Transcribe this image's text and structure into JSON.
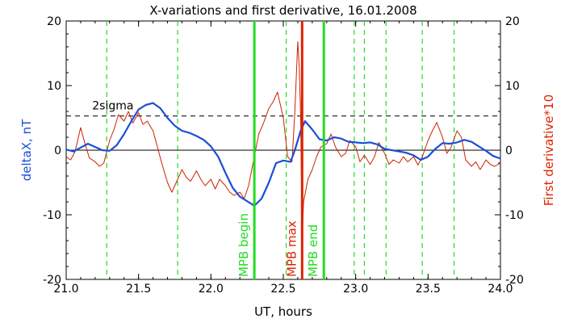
{
  "chart_data": {
    "type": "line",
    "title": "X-variations and first derivative, 16.01.2008",
    "xlabel": "UT, hours",
    "ylabel_left": "deltaX, nT",
    "ylabel_right": "First derivative*10",
    "xlim": [
      21.0,
      24.0
    ],
    "ylim": [
      -20,
      20
    ],
    "xticks": [
      "21.0",
      "21.5",
      "22.0",
      "22.5",
      "23.0",
      "23.5",
      "24.0"
    ],
    "yticks_left": [
      "-20",
      "-10",
      "0",
      "10",
      "20"
    ],
    "yticks_right": [
      "-20",
      "-10",
      "0",
      "10",
      "20"
    ],
    "zero_line": 0,
    "sigma_line": {
      "label": "2sigma",
      "value": 5.3,
      "color": "#000000"
    },
    "colors": {
      "deltaX": "#1a4fd6",
      "derivative": "#cc2200",
      "green": "#22dd22",
      "red_marker": "#dd2200"
    },
    "series": [
      {
        "name": "deltaX",
        "color": "#1a4fd6",
        "points": [
          [
            21.0,
            0.1
          ],
          [
            21.05,
            -0.2
          ],
          [
            21.1,
            0.4
          ],
          [
            21.15,
            1.0
          ],
          [
            21.2,
            0.5
          ],
          [
            21.25,
            0.0
          ],
          [
            21.3,
            -0.1
          ],
          [
            21.35,
            0.8
          ],
          [
            21.4,
            2.5
          ],
          [
            21.45,
            4.5
          ],
          [
            21.5,
            6.3
          ],
          [
            21.55,
            7.0
          ],
          [
            21.6,
            7.3
          ],
          [
            21.65,
            6.5
          ],
          [
            21.7,
            5.0
          ],
          [
            21.75,
            3.8
          ],
          [
            21.8,
            3.0
          ],
          [
            21.85,
            2.7
          ],
          [
            21.9,
            2.2
          ],
          [
            21.95,
            1.6
          ],
          [
            22.0,
            0.6
          ],
          [
            22.05,
            -1.0
          ],
          [
            22.1,
            -3.5
          ],
          [
            22.15,
            -5.8
          ],
          [
            22.2,
            -7.2
          ],
          [
            22.25,
            -7.9
          ],
          [
            22.28,
            -8.3
          ],
          [
            22.3,
            -8.6
          ],
          [
            22.35,
            -7.5
          ],
          [
            22.4,
            -5.0
          ],
          [
            22.45,
            -2.0
          ],
          [
            22.5,
            -1.6
          ],
          [
            22.55,
            -1.8
          ],
          [
            22.58,
            0.0
          ],
          [
            22.62,
            3.0
          ],
          [
            22.65,
            4.5
          ],
          [
            22.7,
            3.2
          ],
          [
            22.75,
            1.7
          ],
          [
            22.8,
            1.5
          ],
          [
            22.85,
            2.0
          ],
          [
            22.9,
            1.8
          ],
          [
            22.95,
            1.3
          ],
          [
            23.0,
            1.2
          ],
          [
            23.05,
            1.1
          ],
          [
            23.1,
            1.2
          ],
          [
            23.15,
            0.9
          ],
          [
            23.2,
            0.2
          ],
          [
            23.25,
            0.0
          ],
          [
            23.3,
            -0.2
          ],
          [
            23.35,
            -0.4
          ],
          [
            23.4,
            -0.8
          ],
          [
            23.45,
            -1.5
          ],
          [
            23.5,
            -1.0
          ],
          [
            23.55,
            0.2
          ],
          [
            23.6,
            1.1
          ],
          [
            23.65,
            1.0
          ],
          [
            23.7,
            1.2
          ],
          [
            23.75,
            1.6
          ],
          [
            23.8,
            1.3
          ],
          [
            23.85,
            0.6
          ],
          [
            23.9,
            -0.1
          ],
          [
            23.95,
            -0.9
          ],
          [
            24.0,
            -1.3
          ]
        ]
      },
      {
        "name": "First derivative*10",
        "color": "#cc2200",
        "points": [
          [
            21.0,
            -1.0
          ],
          [
            21.03,
            -1.5
          ],
          [
            21.06,
            -0.3
          ],
          [
            21.1,
            3.5
          ],
          [
            21.13,
            1.0
          ],
          [
            21.16,
            -1.2
          ],
          [
            21.2,
            -1.8
          ],
          [
            21.23,
            -2.5
          ],
          [
            21.26,
            -2.0
          ],
          [
            21.3,
            1.5
          ],
          [
            21.33,
            3.2
          ],
          [
            21.36,
            5.5
          ],
          [
            21.4,
            4.5
          ],
          [
            21.43,
            6.0
          ],
          [
            21.46,
            4.2
          ],
          [
            21.5,
            5.8
          ],
          [
            21.53,
            4.0
          ],
          [
            21.56,
            4.5
          ],
          [
            21.6,
            3.0
          ],
          [
            21.63,
            0.5
          ],
          [
            21.66,
            -2.0
          ],
          [
            21.7,
            -5.0
          ],
          [
            21.73,
            -6.5
          ],
          [
            21.76,
            -5.0
          ],
          [
            21.8,
            -3.0
          ],
          [
            21.83,
            -4.2
          ],
          [
            21.86,
            -4.8
          ],
          [
            21.9,
            -3.2
          ],
          [
            21.93,
            -4.5
          ],
          [
            21.96,
            -5.5
          ],
          [
            22.0,
            -4.5
          ],
          [
            22.03,
            -6.0
          ],
          [
            22.06,
            -4.5
          ],
          [
            22.1,
            -5.5
          ],
          [
            22.13,
            -6.5
          ],
          [
            22.16,
            -7.0
          ],
          [
            22.2,
            -6.5
          ],
          [
            22.23,
            -7.5
          ],
          [
            22.26,
            -5.5
          ],
          [
            22.3,
            -1.0
          ],
          [
            22.33,
            2.5
          ],
          [
            22.36,
            4.0
          ],
          [
            22.4,
            6.5
          ],
          [
            22.43,
            7.5
          ],
          [
            22.46,
            9.0
          ],
          [
            22.5,
            5.0
          ],
          [
            22.53,
            -1.0
          ],
          [
            22.56,
            -1.8
          ],
          [
            22.58,
            6.0
          ],
          [
            22.6,
            16.8
          ],
          [
            22.61,
            13.0
          ],
          [
            22.62,
            5.0
          ],
          [
            22.63,
            -14.0
          ],
          [
            22.64,
            -8.0
          ],
          [
            22.67,
            -4.5
          ],
          [
            22.7,
            -3.0
          ],
          [
            22.73,
            -1.0
          ],
          [
            22.76,
            0.5
          ],
          [
            22.8,
            1.0
          ],
          [
            22.83,
            2.5
          ],
          [
            22.86,
            0.5
          ],
          [
            22.9,
            -1.0
          ],
          [
            22.93,
            -0.5
          ],
          [
            22.96,
            1.5
          ],
          [
            23.0,
            0.5
          ],
          [
            23.03,
            -1.8
          ],
          [
            23.06,
            -0.8
          ],
          [
            23.1,
            -2.2
          ],
          [
            23.13,
            -1.0
          ],
          [
            23.16,
            1.2
          ],
          [
            23.2,
            -0.5
          ],
          [
            23.23,
            -2.2
          ],
          [
            23.26,
            -1.5
          ],
          [
            23.3,
            -2.0
          ],
          [
            23.33,
            -1.0
          ],
          [
            23.36,
            -1.8
          ],
          [
            23.4,
            -1.0
          ],
          [
            23.43,
            -2.3
          ],
          [
            23.46,
            -1.0
          ],
          [
            23.5,
            1.5
          ],
          [
            23.53,
            3.0
          ],
          [
            23.56,
            4.3
          ],
          [
            23.6,
            2.0
          ],
          [
            23.63,
            -0.5
          ],
          [
            23.66,
            0.5
          ],
          [
            23.7,
            3.0
          ],
          [
            23.73,
            2.0
          ],
          [
            23.76,
            -1.5
          ],
          [
            23.8,
            -2.5
          ],
          [
            23.83,
            -1.8
          ],
          [
            23.86,
            -3.0
          ],
          [
            23.9,
            -1.5
          ],
          [
            23.93,
            -2.2
          ],
          [
            23.96,
            -2.5
          ],
          [
            24.0,
            -2.0
          ]
        ]
      }
    ],
    "dashed_verticals_x": [
      21.28,
      21.77,
      22.52,
      22.99,
      23.06,
      23.21,
      23.46,
      23.68
    ],
    "markers": [
      {
        "x": 22.3,
        "label": "MPB begin",
        "color": "#22dd22"
      },
      {
        "x": 22.63,
        "label": "MPB max",
        "color": "#dd2200"
      },
      {
        "x": 22.78,
        "label": "MPB end",
        "color": "#22dd22"
      }
    ]
  }
}
